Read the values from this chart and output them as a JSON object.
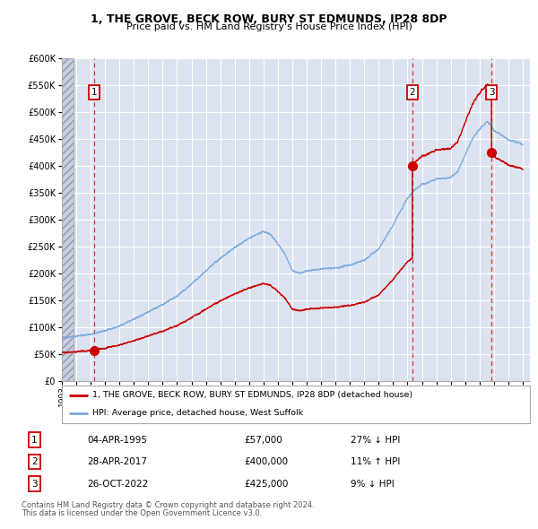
{
  "title1": "1, THE GROVE, BECK ROW, BURY ST EDMUNDS, IP28 8DP",
  "title2": "Price paid vs. HM Land Registry's House Price Index (HPI)",
  "ylim": [
    0,
    600000
  ],
  "yticks": [
    0,
    50000,
    100000,
    150000,
    200000,
    250000,
    300000,
    350000,
    400000,
    450000,
    500000,
    550000,
    600000
  ],
  "xlim_start": 1993.0,
  "xlim_end": 2025.5,
  "sale_dates": [
    1995.25,
    2017.33,
    2022.83
  ],
  "sale_prices": [
    57000,
    400000,
    425000
  ],
  "sale_labels": [
    "1",
    "2",
    "3"
  ],
  "sale_info": [
    {
      "num": "1",
      "date": "04-APR-1995",
      "price": "£57,000",
      "hpi": "27% ↓ HPI"
    },
    {
      "num": "2",
      "date": "28-APR-2017",
      "price": "£400,000",
      "hpi": "11% ↑ HPI"
    },
    {
      "num": "3",
      "date": "26-OCT-2022",
      "price": "£425,000",
      "hpi": "9% ↓ HPI"
    }
  ],
  "hpi_label": "HPI: Average price, detached house, West Suffolk",
  "property_label": "1, THE GROVE, BECK ROW, BURY ST EDMUNDS, IP28 8DP (detached house)",
  "red_color": "#cc0000",
  "blue_color": "#7aaadd",
  "bg_color": "#dce3f0",
  "grid_color": "#ffffff",
  "hatch_color": "#c8cedc",
  "footnote1": "Contains HM Land Registry data © Crown copyright and database right 2024.",
  "footnote2": "This data is licensed under the Open Government Licence v3.0."
}
